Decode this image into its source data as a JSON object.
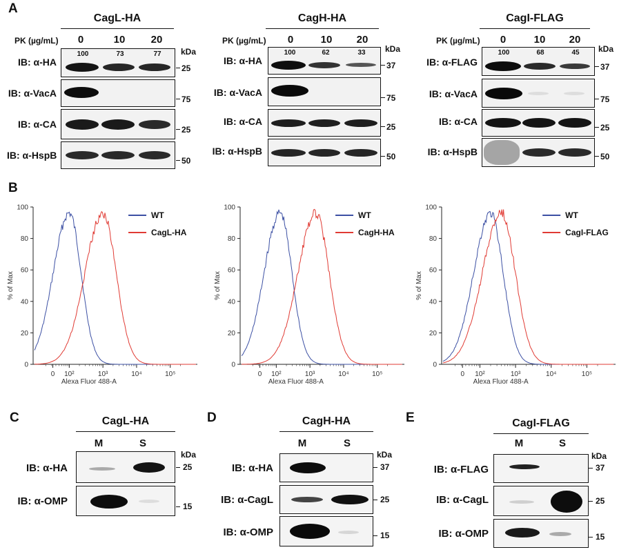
{
  "panel_labels": {
    "a": "A",
    "b": "B",
    "c": "C",
    "d": "D",
    "e": "E"
  },
  "panelA": {
    "pk_label": "PK (µg/mL)",
    "kda": "kDa",
    "blots": [
      {
        "title": "CagL-HA",
        "lanes": [
          "0",
          "10",
          "20"
        ],
        "quant": [
          "100",
          "73",
          "77"
        ],
        "rows": [
          {
            "label": "IB: α-HA",
            "mw": "25"
          },
          {
            "label": "IB: α-VacA",
            "mw": "75"
          },
          {
            "label": "IB: α-CA",
            "mw": "25"
          },
          {
            "label": "IB: α-HspB",
            "mw": "50"
          }
        ]
      },
      {
        "title": "CagH-HA",
        "lanes": [
          "0",
          "10",
          "20"
        ],
        "quant": [
          "100",
          "62",
          "33"
        ],
        "rows": [
          {
            "label": "IB: α-HA",
            "mw": "37"
          },
          {
            "label": "IB: α-VacA",
            "mw": "75"
          },
          {
            "label": "IB: α-CA",
            "mw": "25"
          },
          {
            "label": "IB: α-HspB",
            "mw": "50"
          }
        ]
      },
      {
        "title": "CagI-FLAG",
        "lanes": [
          "0",
          "10",
          "20"
        ],
        "quant": [
          "100",
          "68",
          "45"
        ],
        "rows": [
          {
            "label": "IB: α-FLAG",
            "mw": "37"
          },
          {
            "label": "IB: α-VacA",
            "mw": "75"
          },
          {
            "label": "IB: α-CA",
            "mw": "25"
          },
          {
            "label": "IB: α-HspB",
            "mw": "50"
          }
        ]
      }
    ]
  },
  "chart_data": [
    {
      "type": "line",
      "ylabel": "% of Max",
      "xlabel": "Alexa Fluor 488-A",
      "ylim": [
        0,
        100
      ],
      "yticks": [
        "0",
        "20",
        "40",
        "60",
        "80",
        "100"
      ],
      "xticks": [
        "0",
        "10²",
        "10³",
        "10⁴",
        "10⁵"
      ],
      "series": [
        {
          "name": "WT",
          "color": "#3b4fa3",
          "peak": 100
        },
        {
          "name": "CagL-HA",
          "color": "#e03a33",
          "peak": 1000
        }
      ]
    },
    {
      "type": "line",
      "ylabel": "% of Max",
      "xlabel": "Alexa Fluor 488-A",
      "ylim": [
        0,
        100
      ],
      "yticks": [
        "0",
        "20",
        "40",
        "60",
        "80",
        "100"
      ],
      "xticks": [
        "0",
        "10²",
        "10³",
        "10⁴",
        "10⁵"
      ],
      "series": [
        {
          "name": "WT",
          "color": "#3b4fa3",
          "peak": 130
        },
        {
          "name": "CagH-HA",
          "color": "#e03a33",
          "peak": 1500
        }
      ]
    },
    {
      "type": "line",
      "ylabel": "% of Max",
      "xlabel": "Alexa Fluor 488-A",
      "ylim": [
        0,
        100
      ],
      "yticks": [
        "0",
        "20",
        "40",
        "60",
        "80",
        "100"
      ],
      "xticks": [
        "0",
        "10²",
        "10³",
        "10⁴",
        "10⁵"
      ],
      "series": [
        {
          "name": "WT",
          "color": "#3b4fa3",
          "peak": 200
        },
        {
          "name": "CagI-FLAG",
          "color": "#e03a33",
          "peak": 400
        }
      ]
    }
  ],
  "panelC": {
    "title": "CagL-HA",
    "lanes": [
      "M",
      "S"
    ],
    "kda": "kDa",
    "rows": [
      {
        "label": "IB: α-HA",
        "mw": "25"
      },
      {
        "label": "IB: α-OMP",
        "mw": "15"
      }
    ]
  },
  "panelD": {
    "title": "CagH-HA",
    "lanes": [
      "M",
      "S"
    ],
    "kda": "kDa",
    "rows": [
      {
        "label": "IB: α-HA",
        "mw": "37"
      },
      {
        "label": "IB: α-CagL",
        "mw": "25"
      },
      {
        "label": "IB: α-OMP",
        "mw": "15"
      }
    ]
  },
  "panelE": {
    "title": "CagI-FLAG",
    "lanes": [
      "M",
      "S"
    ],
    "kda": "kDa",
    "rows": [
      {
        "label": "IB: α-FLAG",
        "mw": "37"
      },
      {
        "label": "IB: α-CagL",
        "mw": "25"
      },
      {
        "label": "IB: α-OMP",
        "mw": "15"
      }
    ]
  }
}
